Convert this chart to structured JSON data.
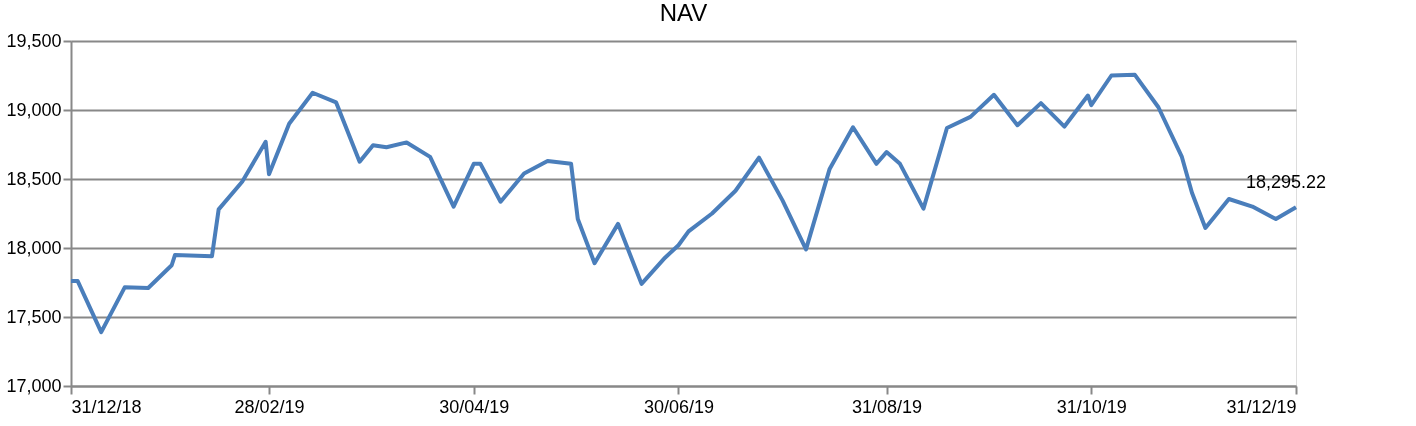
{
  "chart_data": {
    "type": "line",
    "title": "NAV",
    "x": [
      "2018-12-31",
      "2019-01-02",
      "2019-01-09",
      "2019-01-16",
      "2019-01-23",
      "2019-01-30",
      "2019-01-31",
      "2019-02-11",
      "2019-02-13",
      "2019-02-20",
      "2019-02-27",
      "2019-02-28",
      "2019-03-06",
      "2019-03-13",
      "2019-03-20",
      "2019-03-27",
      "2019-03-31",
      "2019-04-04",
      "2019-04-10",
      "2019-04-17",
      "2019-04-24",
      "2019-04-30",
      "2019-05-02",
      "2019-05-08",
      "2019-05-15",
      "2019-05-22",
      "2019-05-29",
      "2019-05-31",
      "2019-06-05",
      "2019-06-12",
      "2019-06-19",
      "2019-06-26",
      "2019-06-30",
      "2019-07-03",
      "2019-07-10",
      "2019-07-17",
      "2019-07-24",
      "2019-07-31",
      "2019-08-07",
      "2019-08-14",
      "2019-08-21",
      "2019-08-28",
      "2019-08-31",
      "2019-09-04",
      "2019-09-11",
      "2019-09-18",
      "2019-09-25",
      "2019-10-02",
      "2019-10-09",
      "2019-10-16",
      "2019-10-23",
      "2019-10-30",
      "2019-10-31",
      "2019-11-06",
      "2019-11-13",
      "2019-11-20",
      "2019-11-27",
      "2019-11-30",
      "2019-12-04",
      "2019-12-11",
      "2019-12-18",
      "2019-12-25",
      "2019-12-31"
    ],
    "series": [
      {
        "color": "#4a7ebb",
        "values": [
          17760,
          17760,
          17390,
          17715,
          17710,
          17875,
          17950,
          17940,
          18280,
          18480,
          18770,
          18535,
          18900,
          19125,
          19055,
          18625,
          18745,
          18730,
          18765,
          18660,
          18300,
          18610,
          18610,
          18335,
          18540,
          18630,
          18610,
          18210,
          17890,
          18175,
          17740,
          17930,
          18020,
          18120,
          18250,
          18415,
          18655,
          18345,
          17990,
          18570,
          18875,
          18610,
          18695,
          18610,
          18285,
          18870,
          18950,
          19110,
          18890,
          19050,
          18880,
          19105,
          19035,
          19250,
          19255,
          19020,
          18660,
          18400,
          18145,
          18355,
          18300,
          18210,
          18295.22
        ],
        "value_labels": [
          null,
          null,
          null,
          null,
          null,
          null,
          null,
          null,
          null,
          null,
          null,
          null,
          null,
          null,
          null,
          null,
          null,
          null,
          null,
          null,
          null,
          null,
          null,
          null,
          null,
          null,
          null,
          null,
          null,
          null,
          null,
          null,
          null,
          null,
          null,
          null,
          null,
          null,
          null,
          null,
          null,
          null,
          null,
          null,
          null,
          null,
          null,
          null,
          null,
          null,
          null,
          null,
          null,
          null,
          null,
          null,
          null,
          null,
          null,
          null,
          null,
          null,
          "18,295.22"
        ]
      }
    ],
    "xlim": [
      "2018-12-31",
      "2019-12-31"
    ],
    "xticks": [
      {
        "value": "2018-12-31",
        "label": "31/12/18"
      },
      {
        "value": "2019-02-28",
        "label": "28/02/19"
      },
      {
        "value": "2019-04-30",
        "label": "30/04/19"
      },
      {
        "value": "2019-06-30",
        "label": "30/06/19"
      },
      {
        "value": "2019-08-31",
        "label": "31/08/19"
      },
      {
        "value": "2019-10-31",
        "label": "31/10/19"
      },
      {
        "value": "2019-12-31",
        "label": "31/12/19"
      }
    ],
    "ylim": [
      17000,
      19500
    ],
    "yticks": [
      {
        "value": 17000,
        "label": "17,000"
      },
      {
        "value": 17500,
        "label": "17,500"
      },
      {
        "value": 18000,
        "label": "18,000"
      },
      {
        "value": 18500,
        "label": "18,500"
      },
      {
        "value": 19000,
        "label": "19,000"
      },
      {
        "value": 19500,
        "label": "19,500"
      }
    ],
    "grid": "y",
    "marker": "none",
    "line_style": "solid"
  }
}
